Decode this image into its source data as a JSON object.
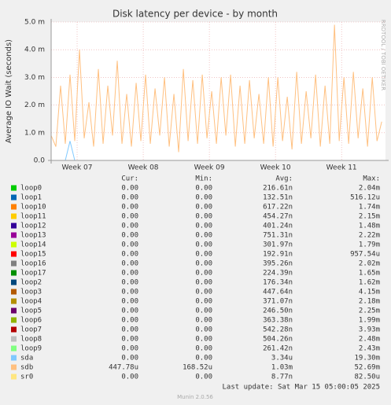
{
  "chart_data": {
    "type": "line",
    "title": "Disk latency per device - by month",
    "y_label": "Average IO Wait (seconds)",
    "side_label": "RRDTOOL / TOBI OETIKER",
    "xlim": [
      0,
      35.4
    ],
    "xticks": [
      {
        "value": 2.75,
        "label": "Week 07"
      },
      {
        "value": 9.75,
        "label": "Week 08"
      },
      {
        "value": 16.75,
        "label": "Week 09"
      },
      {
        "value": 23.75,
        "label": "Week 10"
      },
      {
        "value": 30.75,
        "label": "Week 11"
      }
    ],
    "ylim": [
      0,
      0.005
    ],
    "yticks": [
      {
        "value": 0,
        "label": "0.0"
      },
      {
        "value": 0.001,
        "label": "1.0 m"
      },
      {
        "value": 0.002,
        "label": "2.0 m"
      },
      {
        "value": 0.003,
        "label": "3.0 m"
      },
      {
        "value": 0.004,
        "label": "4.0 m"
      },
      {
        "value": 0.005,
        "label": "5.0 m"
      }
    ],
    "grid": true,
    "x": [
      0,
      0.5,
      1,
      1.5,
      2,
      2.5,
      3,
      3.5,
      4,
      4.5,
      5,
      5.5,
      6,
      6.5,
      7,
      7.5,
      8,
      8.5,
      9,
      9.5,
      10,
      10.5,
      11,
      11.5,
      12,
      12.5,
      13,
      13.5,
      14,
      14.5,
      15,
      15.5,
      16,
      16.5,
      17,
      17.5,
      18,
      18.5,
      19,
      19.5,
      20,
      20.5,
      21,
      21.5,
      22,
      22.5,
      23,
      23.5,
      24,
      24.5,
      25,
      25.5,
      26,
      26.5,
      27,
      27.5,
      28,
      28.5,
      29,
      29.5,
      30,
      30.5,
      31,
      31.5,
      32,
      32.5,
      33,
      33.5,
      34,
      34.5,
      35
    ],
    "columns": [
      "Cur:",
      "Min:",
      "Avg:",
      "Max:"
    ],
    "series": [
      {
        "name": "loop0",
        "color": "#00cc00",
        "stats": [
          "0.00",
          "0.00",
          "216.61n",
          "2.04m"
        ]
      },
      {
        "name": "loop1",
        "color": "#0066b3",
        "stats": [
          "0.00",
          "0.00",
          "132.51n",
          "516.12u"
        ]
      },
      {
        "name": "loop10",
        "color": "#ff8000",
        "stats": [
          "0.00",
          "0.00",
          "617.22n",
          "1.74m"
        ]
      },
      {
        "name": "loop11",
        "color": "#ffcc00",
        "stats": [
          "0.00",
          "0.00",
          "454.27n",
          "2.15m"
        ]
      },
      {
        "name": "loop12",
        "color": "#330099",
        "stats": [
          "0.00",
          "0.00",
          "401.24n",
          "1.48m"
        ]
      },
      {
        "name": "loop13",
        "color": "#990099",
        "stats": [
          "0.00",
          "0.00",
          "751.31n",
          "2.22m"
        ]
      },
      {
        "name": "loop14",
        "color": "#ccff00",
        "stats": [
          "0.00",
          "0.00",
          "301.97n",
          "1.79m"
        ]
      },
      {
        "name": "loop15",
        "color": "#ff0000",
        "stats": [
          "0.00",
          "0.00",
          "192.91n",
          "957.54u"
        ]
      },
      {
        "name": "loop16",
        "color": "#808080",
        "stats": [
          "0.00",
          "0.00",
          "395.26n",
          "2.02m"
        ]
      },
      {
        "name": "loop17",
        "color": "#008f00",
        "stats": [
          "0.00",
          "0.00",
          "224.39n",
          "1.65m"
        ]
      },
      {
        "name": "loop2",
        "color": "#00487d",
        "stats": [
          "0.00",
          "0.00",
          "176.34n",
          "1.62m"
        ]
      },
      {
        "name": "loop3",
        "color": "#b35a00",
        "stats": [
          "0.00",
          "0.00",
          "447.64n",
          "4.15m"
        ]
      },
      {
        "name": "loop4",
        "color": "#b38f00",
        "stats": [
          "0.00",
          "0.00",
          "371.07n",
          "2.18m"
        ]
      },
      {
        "name": "loop5",
        "color": "#6b006b",
        "stats": [
          "0.00",
          "0.00",
          "246.50n",
          "2.25m"
        ]
      },
      {
        "name": "loop6",
        "color": "#8fb300",
        "stats": [
          "0.00",
          "0.00",
          "363.38n",
          "1.99m"
        ]
      },
      {
        "name": "loop7",
        "color": "#b30000",
        "stats": [
          "0.00",
          "0.00",
          "542.28n",
          "3.93m"
        ]
      },
      {
        "name": "loop8",
        "color": "#bebebe",
        "stats": [
          "0.00",
          "0.00",
          "504.26n",
          "2.48m"
        ]
      },
      {
        "name": "loop9",
        "color": "#80ff80",
        "stats": [
          "0.00",
          "0.00",
          "261.42n",
          "2.43m"
        ]
      },
      {
        "name": "sda",
        "color": "#80c9ff",
        "stats": [
          "0.00",
          "0.00",
          "3.34u",
          "19.30m"
        ],
        "values": [
          0,
          0,
          0,
          0,
          0.0007,
          0,
          0,
          0,
          0,
          0,
          0,
          0,
          0,
          0,
          0,
          0,
          0,
          0,
          0,
          0,
          0,
          0,
          0,
          0,
          0,
          0,
          0,
          0,
          0,
          0,
          0,
          0,
          0,
          0,
          0,
          0,
          0,
          0,
          0,
          0,
          0,
          0,
          0,
          0,
          0,
          0,
          0,
          0,
          0,
          0,
          0,
          0,
          0,
          0,
          0,
          0,
          0,
          0,
          0,
          0,
          0,
          0,
          0,
          0,
          0,
          0,
          0,
          0,
          0,
          0,
          0
        ]
      },
      {
        "name": "sdb",
        "color": "#ffc080",
        "stats": [
          "447.78u",
          "168.52u",
          "1.03m",
          "52.69m"
        ],
        "values": [
          0.0009,
          0.0005,
          0.0027,
          0.0006,
          0.0031,
          0.0007,
          0.004,
          0.0008,
          0.0021,
          0.0005,
          0.0033,
          0.0006,
          0.0027,
          0.0009,
          0.0036,
          0.0006,
          0.0024,
          0.0005,
          0.0028,
          0.0007,
          0.0031,
          0.0006,
          0.0026,
          0.0009,
          0.003,
          0.0005,
          0.0024,
          0.0003,
          0.0033,
          0.0007,
          0.0029,
          0.0006,
          0.0031,
          0.0008,
          0.0025,
          0.0006,
          0.003,
          0.0009,
          0.0031,
          0.0005,
          0.0027,
          0.0006,
          0.0029,
          0.0008,
          0.0024,
          0.0006,
          0.003,
          0.0005,
          0.003,
          0.0007,
          0.0023,
          0.0004,
          0.0032,
          0.0006,
          0.0025,
          0.0008,
          0.0031,
          0.0005,
          0.0027,
          0.0006,
          0.0049,
          0.0007,
          0.003,
          0.0006,
          0.0032,
          0.0008,
          0.0026,
          0.0005,
          0.003,
          0.0007,
          0.0014
        ]
      },
      {
        "name": "sr0",
        "color": "#ffe680",
        "stats": [
          "0.00",
          "0.00",
          "8.77n",
          "82.50u"
        ]
      }
    ],
    "last_update": "Last update: Sat Mar 15 05:00:05 2025",
    "footer": "Munin 2.0.56"
  }
}
